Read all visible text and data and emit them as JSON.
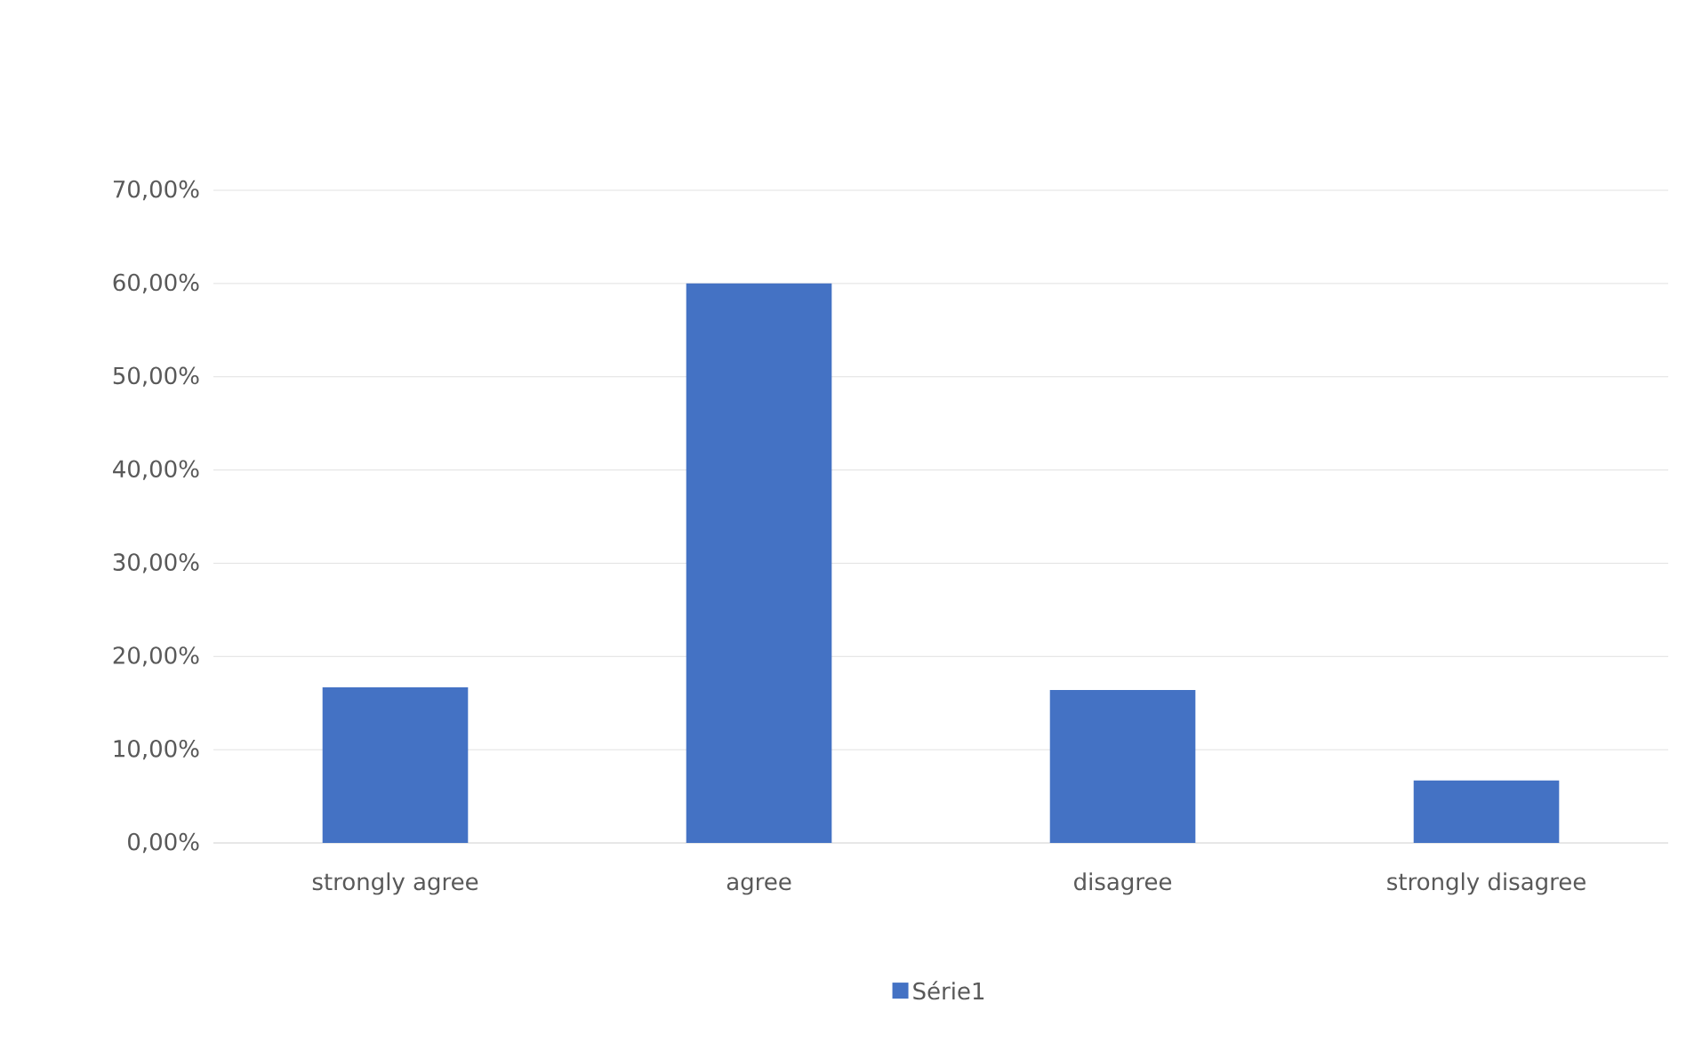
{
  "chart_data": {
    "type": "bar",
    "categories": [
      "strongly agree",
      "agree",
      "disagree",
      "strongly disagree"
    ],
    "series": [
      {
        "name": "Série1",
        "color": "#4472c4",
        "values": [
          16.7,
          60.0,
          16.4,
          6.7
        ]
      }
    ],
    "ylim": [
      0,
      70
    ],
    "yticks": [
      {
        "value": 0,
        "label": "0,00%"
      },
      {
        "value": 10,
        "label": "10,00%"
      },
      {
        "value": 20,
        "label": "20,00%"
      },
      {
        "value": 30,
        "label": "30,00%"
      },
      {
        "value": 40,
        "label": "40,00%"
      },
      {
        "value": 50,
        "label": "50,00%"
      },
      {
        "value": 60,
        "label": "60,00%"
      },
      {
        "value": 70,
        "label": "70,00%"
      }
    ],
    "grid": "y",
    "legend": "bottom"
  }
}
